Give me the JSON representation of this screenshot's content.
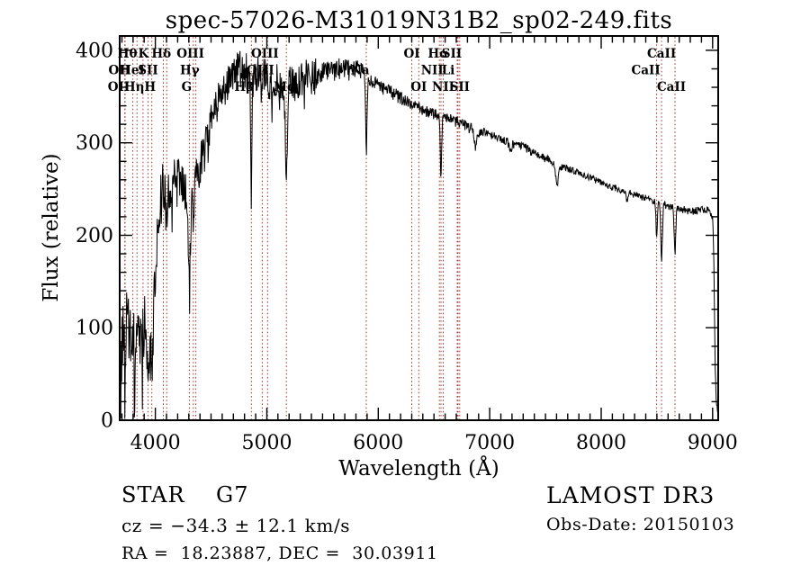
{
  "chart_data": {
    "type": "line",
    "title": "spec-57026-M31019N31B2_sp02-249.fits",
    "xlabel": "Wavelength (Å)",
    "ylabel": "Flux (relative)",
    "xlim": [
      3680,
      9050
    ],
    "ylim": [
      0,
      415.5
    ],
    "x_ticks": [
      4000,
      5000,
      6000,
      7000,
      8000,
      9000
    ],
    "x_minor_step": 100,
    "y_ticks": [
      0,
      100,
      200,
      300,
      400
    ],
    "y_minor_step": 20,
    "grid": false,
    "line_color": "#000000",
    "marker_line_color": "#a03a32",
    "spectral_lines": [
      {
        "label": "OII",
        "wavelength": 3726.0,
        "row": 2,
        "dx": -6
      },
      {
        "label": "OII",
        "wavelength": 3728.8,
        "row": 3,
        "dx": -7
      },
      {
        "label": "Hθ",
        "wavelength": 3798.0,
        "row": 1,
        "dx": -6
      },
      {
        "label": "Hη",
        "wavelength": 3835.4,
        "row": 3,
        "dx": -3
      },
      {
        "label": "HeI",
        "wavelength": 3889.0,
        "row": 2,
        "dx": -12
      },
      {
        "label": "K",
        "wavelength": 3933.7,
        "row": 1,
        "dx": -5
      },
      {
        "label": "H",
        "wavelength": 3968.5,
        "row": 3,
        "dx": -2
      },
      {
        "label": "SII",
        "wavelength": 4072.0,
        "row": 2,
        "dx": -17
      },
      {
        "label": "Hδ",
        "wavelength": 4101.7,
        "row": 1,
        "dx": -6
      },
      {
        "label": "G",
        "wavelength": 4305.0,
        "row": 3,
        "dx": -3
      },
      {
        "label": "Hγ",
        "wavelength": 4340.5,
        "row": 2,
        "dx": -4
      },
      {
        "label": "OIII",
        "wavelength": 4363.2,
        "row": 1,
        "dx": -6
      },
      {
        "label": "Hβ",
        "wavelength": 4861.3,
        "row": 3,
        "dx": -8
      },
      {
        "label": "OIII",
        "wavelength": 4958.9,
        "row": 2,
        "dx": -2
      },
      {
        "label": "OIII",
        "wavelength": 5006.8,
        "row": 1,
        "dx": -3
      },
      {
        "label": "Mg",
        "wavelength": 5175.3,
        "row": 3,
        "dx": -2
      },
      {
        "label": "Na",
        "wavelength": 5893.0,
        "row": 2,
        "dx": -7
      },
      {
        "label": "OI",
        "wavelength": 6300.2,
        "row": 1,
        "dx": 0
      },
      {
        "label": "OI",
        "wavelength": 6363.0,
        "row": 3,
        "dx": 0
      },
      {
        "label": "NII",
        "wavelength": 6548.1,
        "row": 2,
        "dx": -8
      },
      {
        "label": "Hα",
        "wavelength": 6562.8,
        "row": 1,
        "dx": -3
      },
      {
        "label": "NII",
        "wavelength": 6583.4,
        "row": 3,
        "dx": 0
      },
      {
        "label": "Li",
        "wavelength": 6707.8,
        "row": 2,
        "dx": -10
      },
      {
        "label": "SII",
        "wavelength": 6716.4,
        "row": 1,
        "dx": -7
      },
      {
        "label": "SII",
        "wavelength": 6730.8,
        "row": 3,
        "dx": 0
      },
      {
        "label": "CaII",
        "wavelength": 8498.0,
        "row": 2,
        "dx": -12
      },
      {
        "label": "CaII",
        "wavelength": 8542.1,
        "row": 1,
        "dx": 0
      },
      {
        "label": "CaII",
        "wavelength": 8662.1,
        "row": 3,
        "dx": -4
      }
    ],
    "continuum_points": [
      [
        3680,
        8
      ],
      [
        3692,
        55
      ],
      [
        3705,
        95
      ],
      [
        3725,
        80
      ],
      [
        3745,
        108
      ],
      [
        3765,
        92
      ],
      [
        3785,
        72
      ],
      [
        3805,
        78
      ],
      [
        3825,
        88
      ],
      [
        3845,
        108
      ],
      [
        3865,
        95
      ],
      [
        3885,
        82
      ],
      [
        3905,
        118
      ],
      [
        3925,
        100
      ],
      [
        3945,
        108
      ],
      [
        3965,
        95
      ],
      [
        3985,
        135
      ],
      [
        4010,
        180
      ],
      [
        4040,
        232
      ],
      [
        4070,
        252
      ],
      [
        4100,
        244
      ],
      [
        4150,
        258
      ],
      [
        4200,
        264
      ],
      [
        4250,
        256
      ],
      [
        4300,
        238
      ],
      [
        4350,
        256
      ],
      [
        4400,
        276
      ],
      [
        4450,
        294
      ],
      [
        4500,
        322
      ],
      [
        4550,
        342
      ],
      [
        4600,
        356
      ],
      [
        4650,
        366
      ],
      [
        4700,
        374
      ],
      [
        4750,
        381
      ],
      [
        4800,
        378
      ],
      [
        4850,
        372
      ],
      [
        4900,
        371
      ],
      [
        4950,
        373
      ],
      [
        5000,
        369
      ],
      [
        5050,
        366
      ],
      [
        5100,
        367
      ],
      [
        5150,
        362
      ],
      [
        5200,
        365
      ],
      [
        5250,
        364
      ],
      [
        5300,
        367
      ],
      [
        5350,
        371
      ],
      [
        5400,
        370
      ],
      [
        5450,
        373
      ],
      [
        5500,
        375
      ],
      [
        5550,
        379
      ],
      [
        5600,
        377
      ],
      [
        5650,
        380
      ],
      [
        5700,
        379
      ],
      [
        5750,
        378
      ],
      [
        5800,
        380
      ],
      [
        5850,
        379
      ],
      [
        5900,
        371
      ],
      [
        5950,
        367
      ],
      [
        6000,
        363
      ],
      [
        6050,
        359
      ],
      [
        6100,
        355
      ],
      [
        6150,
        352
      ],
      [
        6200,
        349
      ],
      [
        6250,
        346
      ],
      [
        6300,
        342
      ],
      [
        6350,
        339
      ],
      [
        6400,
        336
      ],
      [
        6450,
        333
      ],
      [
        6500,
        331
      ],
      [
        6550,
        329
      ],
      [
        6600,
        327
      ],
      [
        6650,
        325
      ],
      [
        6700,
        323
      ],
      [
        6750,
        320
      ],
      [
        6800,
        317
      ],
      [
        6850,
        314
      ],
      [
        6900,
        312
      ],
      [
        6950,
        311
      ],
      [
        7000,
        309
      ],
      [
        7100,
        304
      ],
      [
        7200,
        299
      ],
      [
        7300,
        295
      ],
      [
        7400,
        289
      ],
      [
        7500,
        283
      ],
      [
        7600,
        276
      ],
      [
        7700,
        272
      ],
      [
        7800,
        267
      ],
      [
        7900,
        262
      ],
      [
        8000,
        257
      ],
      [
        8100,
        252
      ],
      [
        8200,
        248
      ],
      [
        8300,
        244
      ],
      [
        8400,
        240
      ],
      [
        8500,
        236
      ],
      [
        8600,
        232
      ],
      [
        8700,
        229
      ],
      [
        8800,
        226
      ],
      [
        8900,
        227
      ],
      [
        8950,
        228
      ],
      [
        9000,
        221
      ],
      [
        9012,
        168
      ],
      [
        9022,
        60
      ],
      [
        9035,
        14
      ],
      [
        9050,
        12
      ]
    ],
    "absorption_dips": [
      [
        3933.7,
        52,
        9
      ],
      [
        3968.5,
        45,
        9
      ],
      [
        4101.7,
        28,
        9
      ],
      [
        4305,
        70,
        11
      ],
      [
        4340.5,
        30,
        7
      ],
      [
        4861.3,
        100,
        6
      ],
      [
        5175.3,
        100,
        9
      ],
      [
        5893,
        82,
        6
      ],
      [
        6562.8,
        66,
        6
      ],
      [
        6870,
        17,
        10
      ],
      [
        7185,
        8,
        10
      ],
      [
        7605,
        20,
        12
      ],
      [
        8230,
        8,
        10
      ],
      [
        8498,
        38,
        6
      ],
      [
        8542.1,
        62,
        7
      ],
      [
        8662.1,
        50,
        7
      ]
    ],
    "noise_segments": [
      [
        3680,
        3990,
        40
      ],
      [
        3990,
        4080,
        30
      ],
      [
        4080,
        4500,
        24
      ],
      [
        4500,
        5050,
        22
      ],
      [
        5050,
        5450,
        20
      ],
      [
        5450,
        5850,
        12
      ],
      [
        5850,
        6250,
        8
      ],
      [
        6250,
        6950,
        6.5
      ],
      [
        6950,
        7600,
        5
      ],
      [
        7600,
        8450,
        4
      ],
      [
        8450,
        9050,
        4.5
      ]
    ]
  },
  "annotations": {
    "class_line": "STAR    G7",
    "cz_line": "cz = −34.3 ± 12.1 km/s",
    "ra_dec_line": "RA =  18.23887, DEC =  30.03911",
    "survey_line": "LAMOST DR3",
    "obs_date_line": "Obs-Date: 20150103"
  }
}
